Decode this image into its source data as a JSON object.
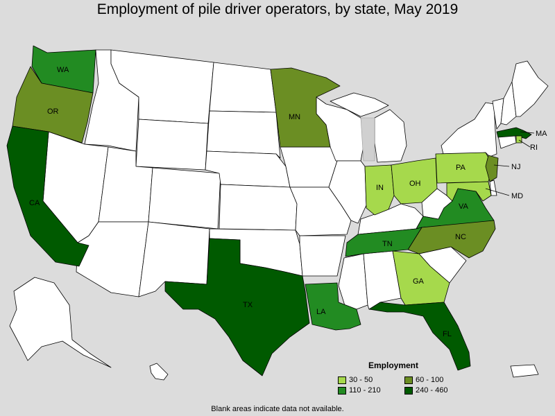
{
  "title": "Employment of pile driver operators, by state, May 2019",
  "legend": {
    "title": "Employment",
    "items": [
      {
        "label": "30 - 50",
        "color": "#a6d94c"
      },
      {
        "label": "60 - 100",
        "color": "#6b8e23"
      },
      {
        "label": "110 - 210",
        "color": "#228b22"
      },
      {
        "label": "240 - 460",
        "color": "#005a00"
      }
    ]
  },
  "note": "Blank areas indicate data not available.",
  "colors": {
    "no_data": "#ffffff",
    "water": "#dcdcdc"
  },
  "states": {
    "WA": {
      "label": "WA",
      "range": "110 - 210"
    },
    "OR": {
      "label": "OR",
      "range": "60 - 100"
    },
    "CA": {
      "label": "CA",
      "range": "240 - 460"
    },
    "MN": {
      "label": "MN",
      "range": "60 - 100"
    },
    "TX": {
      "label": "TX",
      "range": "240 - 460"
    },
    "LA": {
      "label": "LA",
      "range": "110 - 210"
    },
    "IN": {
      "label": "IN",
      "range": "30 - 50"
    },
    "OH": {
      "label": "OH",
      "range": "30 - 50"
    },
    "PA": {
      "label": "PA",
      "range": "30 - 50"
    },
    "NJ": {
      "label": "NJ",
      "range": "60 - 100"
    },
    "MD": {
      "label": "MD",
      "range": "30 - 50"
    },
    "VA": {
      "label": "VA",
      "range": "110 - 210"
    },
    "NC": {
      "label": "NC",
      "range": "60 - 100"
    },
    "TN": {
      "label": "TN",
      "range": "110 - 210"
    },
    "GA": {
      "label": "GA",
      "range": "30 - 50"
    },
    "FL": {
      "label": "FL",
      "range": "240 - 460"
    },
    "MA": {
      "label": "MA",
      "range": "240 - 460"
    },
    "RI": {
      "label": "RI",
      "range": "30 - 50"
    }
  }
}
